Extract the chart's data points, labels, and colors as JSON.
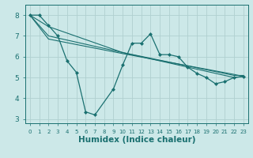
{
  "xlabel": "Humidex (Indice chaleur)",
  "xlim": [
    -0.5,
    23.5
  ],
  "ylim": [
    2.8,
    8.5
  ],
  "background_color": "#cce8e8",
  "grid_color": "#b0d0d0",
  "line_color": "#1a7070",
  "lines": [
    {
      "x": [
        0,
        1,
        2,
        3,
        4,
        5,
        6,
        7,
        9,
        10,
        11,
        12,
        13,
        14,
        15,
        16,
        17,
        18,
        19,
        20,
        21,
        22,
        23
      ],
      "y": [
        8.0,
        8.0,
        7.5,
        7.0,
        5.8,
        5.25,
        3.35,
        3.2,
        4.45,
        5.6,
        6.65,
        6.65,
        7.1,
        6.1,
        6.1,
        6.0,
        5.5,
        5.2,
        5.0,
        4.7,
        4.8,
        5.0,
        5.05
      ],
      "marker": true
    },
    {
      "x": [
        0,
        2,
        10,
        22,
        23
      ],
      "y": [
        8.0,
        7.45,
        6.2,
        5.0,
        5.05
      ],
      "marker": false
    },
    {
      "x": [
        0,
        2,
        10,
        22,
        23
      ],
      "y": [
        8.0,
        7.0,
        6.2,
        5.1,
        5.1
      ],
      "marker": false
    },
    {
      "x": [
        0,
        2,
        10,
        22,
        23
      ],
      "y": [
        8.0,
        6.85,
        6.15,
        5.15,
        5.05
      ],
      "marker": false
    }
  ],
  "xticks": [
    0,
    1,
    2,
    3,
    4,
    5,
    6,
    7,
    8,
    9,
    10,
    11,
    12,
    13,
    14,
    15,
    16,
    17,
    18,
    19,
    20,
    21,
    22,
    23
  ],
  "yticks": [
    3,
    4,
    5,
    6,
    7,
    8
  ],
  "xtick_fontsize": 5.0,
  "ytick_fontsize": 6.5,
  "label_fontsize": 7.5,
  "label_fontweight": "bold"
}
